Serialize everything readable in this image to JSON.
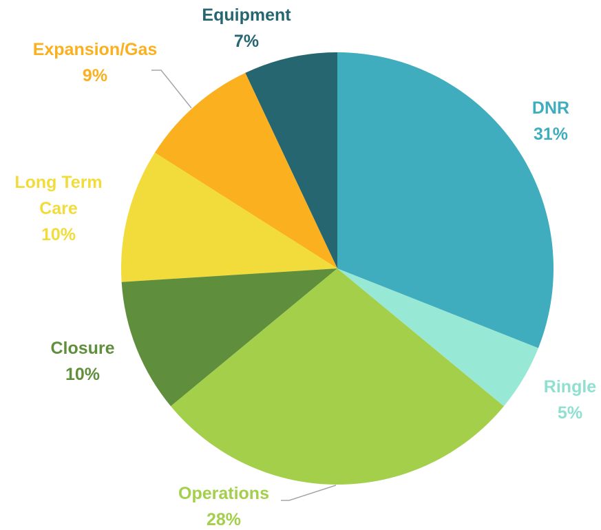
{
  "chart_data": {
    "type": "pie",
    "categories": [
      "DNR",
      "Ringle",
      "Operations",
      "Closure",
      "Long Term Care",
      "Expansion/Gas",
      "Equipment"
    ],
    "values": [
      31,
      5,
      28,
      10,
      10,
      9,
      7
    ],
    "value_labels": [
      "31%",
      "5%",
      "28%",
      "10%",
      "10%",
      "9%",
      "7%"
    ],
    "colors": [
      "#3fadbd",
      "#98e8d6",
      "#a3cf4a",
      "#5f8f3c",
      "#f2dc3c",
      "#fbb01f",
      "#256670"
    ]
  }
}
